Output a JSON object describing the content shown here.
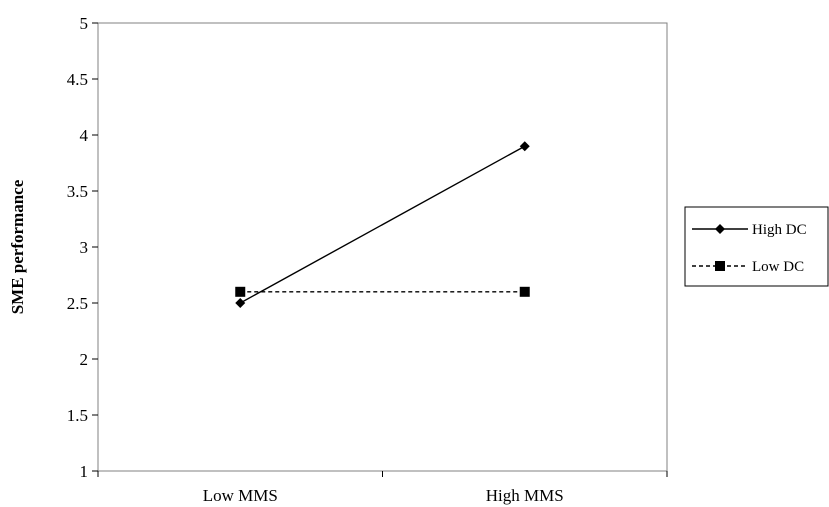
{
  "chart_data": {
    "type": "line",
    "categories": [
      "Low MMS",
      "High MMS"
    ],
    "ylabel": "SME performance",
    "ylim": [
      1,
      5
    ],
    "yticks": [
      "1",
      "1.5",
      "2",
      "2.5",
      "3",
      "3.5",
      "4",
      "4.5",
      "5"
    ],
    "grid": false,
    "legend_position": "right",
    "series": [
      {
        "name": "High DC",
        "values": [
          2.5,
          3.9
        ],
        "color": "#000000",
        "line_style": "solid",
        "marker": "diamond"
      },
      {
        "name": "Low DC",
        "values": [
          2.6,
          2.6
        ],
        "color": "#000000",
        "line_style": "dashed",
        "marker": "square"
      }
    ]
  }
}
